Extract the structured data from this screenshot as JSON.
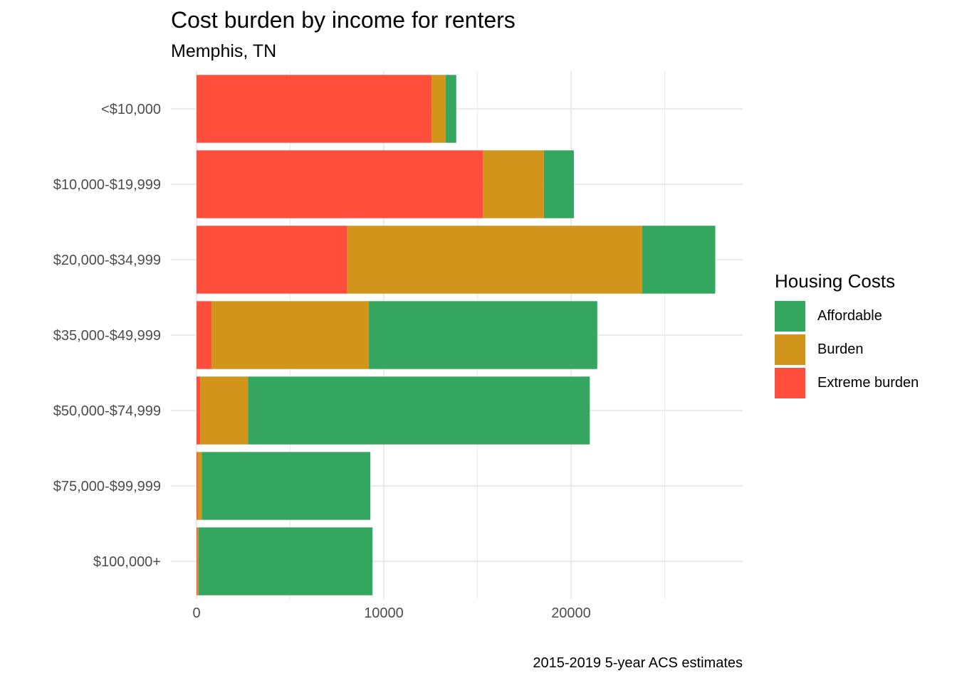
{
  "chart_data": {
    "type": "bar",
    "orientation": "horizontal",
    "stacked": true,
    "title": "Cost burden by income for renters",
    "subtitle": "Memphis, TN",
    "caption": "2015-2019 5-year ACS estimates",
    "xlabel": "",
    "ylabel": "",
    "xlim": [
      0,
      29000
    ],
    "x_ticks": [
      0,
      10000,
      20000
    ],
    "categories": [
      "<$10,000",
      "$10,000-$19,999",
      "$20,000-$34,999",
      "$35,000-$49,999",
      "$50,000-$74,999",
      "$75,000-$99,999",
      "$100,000+"
    ],
    "series": [
      {
        "name": "Extreme burden",
        "color": "#FF4E3C",
        "values": [
          12550,
          15300,
          8050,
          800,
          200,
          60,
          50
        ]
      },
      {
        "name": "Burden",
        "color": "#D1951C",
        "values": [
          750,
          3250,
          15750,
          8400,
          2550,
          220,
          50
        ]
      },
      {
        "name": "Affordable",
        "color": "#34A65F",
        "values": [
          570,
          1600,
          3900,
          12200,
          18250,
          9000,
          9300
        ]
      }
    ],
    "legend": {
      "title": "Housing Costs",
      "position": "right",
      "items": [
        {
          "label": "Affordable",
          "color": "#34A65F"
        },
        {
          "label": "Burden",
          "color": "#D1951C"
        },
        {
          "label": "Extreme burden",
          "color": "#FF4E3C"
        }
      ]
    },
    "grid": true
  }
}
